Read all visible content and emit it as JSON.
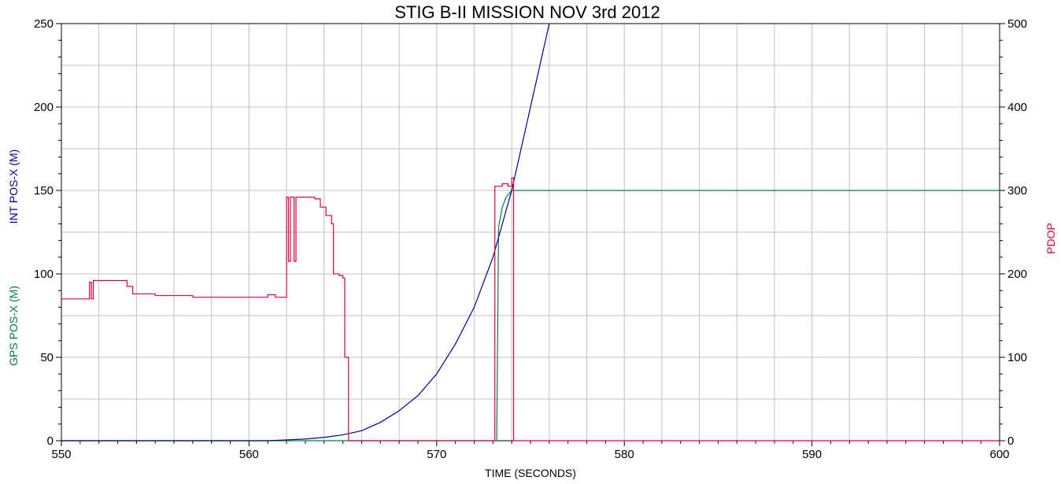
{
  "chart_data": {
    "type": "line",
    "title": "STIG B-II MISSION NOV 3rd 2012",
    "xlabel": "TIME (SECONDS)",
    "ylabel_left": [
      "GPS POS-X (M)",
      "INT POS-X (M)"
    ],
    "ylabel_right": "PDOP",
    "xlim": [
      550,
      600
    ],
    "ylim_left": [
      0,
      250
    ],
    "ylim_right": [
      0,
      500
    ],
    "x_ticks": [
      "550",
      "560",
      "570",
      "580",
      "590",
      "600"
    ],
    "y_left_ticks": [
      "0",
      "50",
      "100",
      "150",
      "200",
      "250"
    ],
    "y_right_ticks": [
      "0",
      "100",
      "200",
      "300",
      "400",
      "500"
    ],
    "grid": true,
    "colors": {
      "gps": "#008040",
      "int": "#000099",
      "pdop": "#e0003c"
    },
    "series": [
      {
        "axis": "left",
        "color": "gps",
        "x": [
          550,
          573.2,
          573.3,
          573.5,
          573.7,
          574.0,
          574.3,
          600
        ],
        "y": [
          0,
          0,
          128,
          140,
          146,
          150,
          150,
          150
        ]
      },
      {
        "axis": "left",
        "color": "int",
        "x": [
          550,
          561,
          562,
          563,
          564,
          565,
          566,
          567,
          568,
          569,
          570,
          571,
          572,
          573,
          574,
          575,
          576
        ],
        "y": [
          0,
          0,
          0.5,
          1,
          2,
          3.5,
          6,
          11,
          18,
          27,
          40,
          58,
          80,
          110,
          150,
          200,
          250
        ]
      },
      {
        "axis": "right",
        "color": "pdop",
        "x": [
          550,
          551.5,
          551.5,
          551.6,
          551.6,
          551.7,
          551.7,
          551.8,
          551.8,
          553.5,
          553.5,
          553.8,
          553.8,
          555,
          555,
          557,
          557,
          561,
          561,
          561.4,
          561.4,
          562.0,
          562.0,
          562.1,
          562.1,
          562.2,
          562.2,
          562.4,
          562.4,
          562.5,
          562.5,
          563.5,
          563.5,
          563.8,
          563.8,
          564.1,
          564.1,
          564.4,
          564.4,
          564.5,
          564.5,
          564.8,
          564.8,
          565.0,
          565.0,
          565.1,
          565.1,
          565.3,
          565.3,
          573.1,
          573.1,
          573.5,
          573.5,
          573.8,
          573.8,
          574.0,
          574.0,
          574.1,
          574.1,
          600
        ],
        "y": [
          170,
          170,
          190,
          190,
          170,
          170,
          192,
          192,
          192,
          192,
          185,
          185,
          176,
          176,
          174,
          174,
          172,
          172,
          175,
          175,
          172,
          172,
          292,
          292,
          215,
          215,
          292,
          292,
          215,
          215,
          292,
          292,
          290,
          290,
          280,
          280,
          270,
          270,
          260,
          260,
          200,
          200,
          198,
          198,
          195,
          195,
          100,
          100,
          0,
          0,
          305,
          305,
          308,
          308,
          305,
          305,
          315,
          315,
          0,
          0
        ]
      }
    ]
  }
}
